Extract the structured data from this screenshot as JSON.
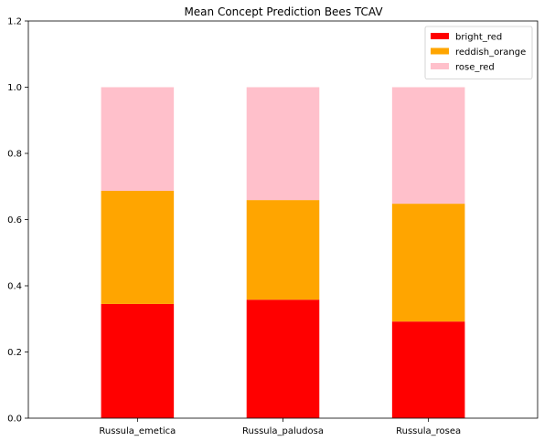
{
  "chart_data": {
    "type": "bar",
    "stacked": true,
    "title": "Mean Concept Prediction Bees TCAV",
    "xlabel": "",
    "ylabel": "",
    "categories": [
      "Russula_emetica",
      "Russula_paludosa",
      "Russula_rosea"
    ],
    "series": [
      {
        "name": "bright_red",
        "color": "#ff0000",
        "values": [
          0.345,
          0.358,
          0.292
        ]
      },
      {
        "name": "reddish_orange",
        "color": "#ffa500",
        "values": [
          0.342,
          0.301,
          0.356
        ]
      },
      {
        "name": "rose_red",
        "color": "#ffc0cb",
        "values": [
          0.313,
          0.341,
          0.352
        ]
      }
    ],
    "ylim": [
      0,
      1.2
    ],
    "yticks": [
      "0.0",
      "0.2",
      "0.4",
      "0.6",
      "0.8",
      "1.0",
      "1.2"
    ],
    "grid": false,
    "legend_position": "top-right"
  }
}
